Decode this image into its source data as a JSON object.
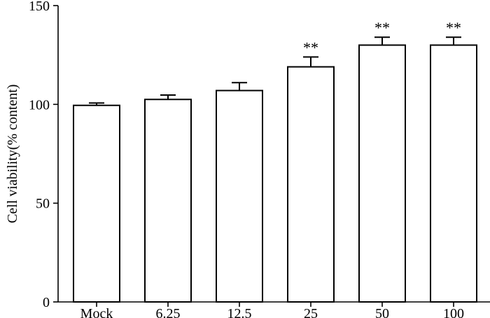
{
  "chart_data": {
    "type": "bar",
    "title": "",
    "xlabel": "",
    "ylabel": "Cell viability(% content)",
    "categories": [
      "Mock",
      "6.25",
      "12.5",
      "25",
      "50",
      "100"
    ],
    "values": [
      99.5,
      102.5,
      107,
      119,
      130,
      130
    ],
    "errors": [
      1.2,
      2.2,
      4,
      5,
      4,
      4
    ],
    "annotations": [
      "",
      "",
      "",
      "**",
      "**",
      "**"
    ],
    "ylim": [
      0,
      150
    ],
    "yticks": [
      0,
      50,
      100,
      150
    ],
    "grid": false,
    "legend": "none",
    "colors": {
      "bar_fill": "#ffffff",
      "bar_stroke": "#000000"
    }
  }
}
